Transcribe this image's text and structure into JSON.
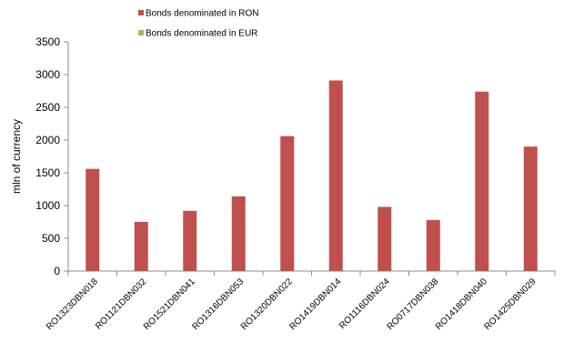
{
  "chart_data": {
    "type": "bar",
    "title": "",
    "xlabel": "",
    "ylabel": "mln of currency",
    "ylim": [
      0,
      3500
    ],
    "yticks": [
      0,
      500,
      1000,
      1500,
      2000,
      2500,
      3000,
      3500
    ],
    "grid": false,
    "legend_position": "top",
    "categories": [
      "RO1323DBN018",
      "RO1121DBN032",
      "RO1521DBN041",
      "RO1316DBN053",
      "RO1320DBN022",
      "RO1419DBN014",
      "RO1116DBN024",
      "RO0717DBN038",
      "RO1418DBN040",
      "RO1425DBN029"
    ],
    "series": [
      {
        "name": "Bonds denominated in RON",
        "color": "#c0504d",
        "values": [
          1560,
          750,
          920,
          1140,
          2060,
          2910,
          980,
          780,
          2740,
          1900
        ]
      },
      {
        "name": "Bonds denominated in EUR",
        "color": "#9bbb59",
        "values": [
          0,
          0,
          0,
          0,
          0,
          0,
          0,
          0,
          0,
          0
        ]
      }
    ]
  }
}
